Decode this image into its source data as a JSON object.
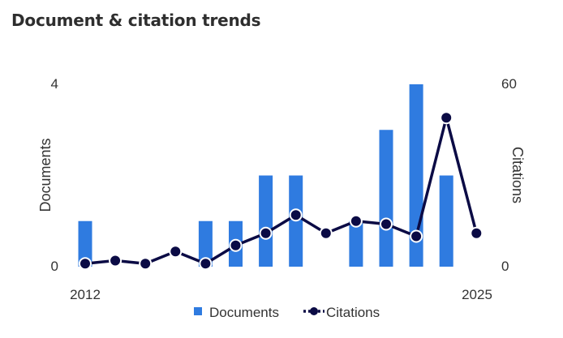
{
  "title": "Document & citation trends",
  "chart_data": {
    "type": "bar",
    "x": [
      2012,
      2013,
      2014,
      2015,
      2016,
      2017,
      2018,
      2019,
      2020,
      2021,
      2022,
      2023,
      2024,
      2025
    ],
    "x_tick_labels": [
      "2012",
      "2025"
    ],
    "series": [
      {
        "name": "Documents",
        "type": "bar",
        "axis": "left",
        "color": "#2f7be0",
        "values": [
          1,
          0,
          0,
          0,
          1,
          1,
          2,
          2,
          0,
          1,
          3,
          4,
          2,
          0
        ]
      },
      {
        "name": "Citations",
        "type": "line",
        "axis": "right",
        "color": "#0b0b45",
        "values": [
          1,
          2,
          1,
          5,
          1,
          7,
          11,
          17,
          11,
          15,
          14,
          10,
          49,
          11
        ]
      }
    ],
    "y_left": {
      "label": "Documents",
      "lim": [
        0,
        4
      ],
      "ticks": [
        "0",
        "4"
      ]
    },
    "y_right": {
      "label": "Citations",
      "lim": [
        0,
        60
      ],
      "ticks": [
        "0",
        "60"
      ]
    },
    "legend_position": "bottom",
    "grid": false
  }
}
